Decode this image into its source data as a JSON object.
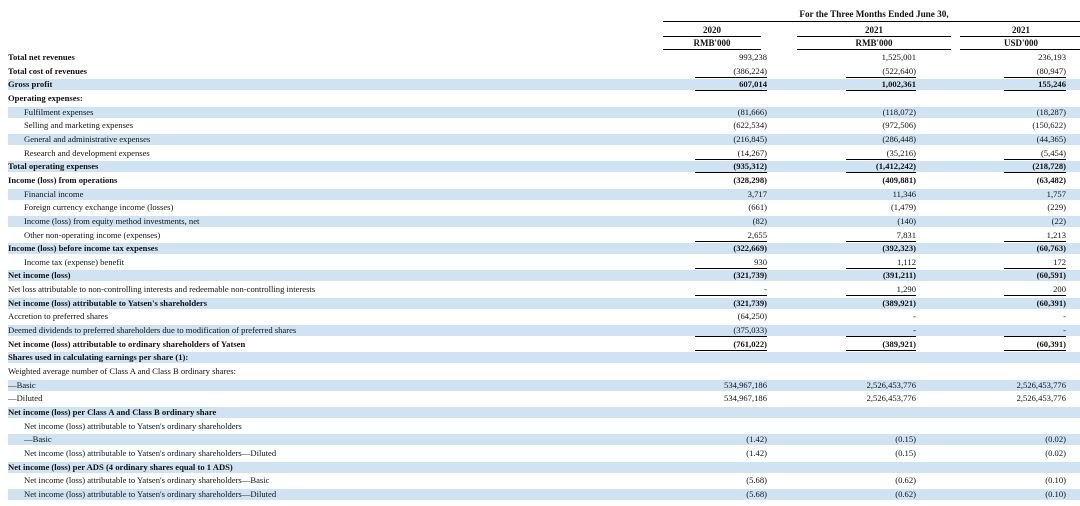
{
  "header": {
    "period_title": "For the Three Months Ended June 30,",
    "columns": [
      {
        "year": "2020",
        "unit": "RMB'000"
      },
      {
        "year": "2021",
        "unit": "RMB'000"
      },
      {
        "year": "2021",
        "unit": "USD'000"
      }
    ]
  },
  "rows": [
    {
      "label": "Total net revenues",
      "bold": true,
      "indent": 0,
      "shaded": false,
      "values": [
        "993,238",
        "1,525,001",
        "236,193"
      ],
      "rule": ""
    },
    {
      "label": "Total cost of revenues",
      "bold": true,
      "indent": 0,
      "shaded": false,
      "values": [
        "(386,224)",
        "(522,640)",
        "(80,947)"
      ],
      "rule": "single"
    },
    {
      "label": "Gross profit",
      "bold": true,
      "indent": 0,
      "shaded": true,
      "values": [
        "607,014",
        "1,002,361",
        "155,246"
      ],
      "rule": "single",
      "boldvals": true
    },
    {
      "label": "Operating expenses:",
      "bold": true,
      "indent": 0,
      "shaded": false,
      "values": [
        "",
        "",
        ""
      ],
      "rule": ""
    },
    {
      "label": "Fulfilment expenses",
      "bold": false,
      "indent": 1,
      "shaded": true,
      "values": [
        "(81,666)",
        "(118,072)",
        "(18,287)"
      ],
      "rule": ""
    },
    {
      "label": "Selling and marketing expenses",
      "bold": false,
      "indent": 1,
      "shaded": false,
      "values": [
        "(622,534)",
        "(972,506)",
        "(150,622)"
      ],
      "rule": ""
    },
    {
      "label": "General and administrative expenses",
      "bold": false,
      "indent": 1,
      "shaded": true,
      "values": [
        "(216,845)",
        "(286,448)",
        "(44,365)"
      ],
      "rule": ""
    },
    {
      "label": "Research and development expenses",
      "bold": false,
      "indent": 1,
      "shaded": false,
      "values": [
        "(14,267)",
        "(35,216)",
        "(5,454)"
      ],
      "rule": "single"
    },
    {
      "label": "Total operating expenses",
      "bold": true,
      "indent": 0,
      "shaded": true,
      "values": [
        "(935,312)",
        "(1,412,242)",
        "(218,728)"
      ],
      "rule": "single",
      "boldvals": true
    },
    {
      "label": "Income (loss) from operations",
      "bold": true,
      "indent": 0,
      "shaded": false,
      "values": [
        "(328,298)",
        "(409,881)",
        "(63,482)"
      ],
      "rule": "",
      "boldvals": true
    },
    {
      "label": "Financial income",
      "bold": false,
      "indent": 1,
      "shaded": true,
      "values": [
        "3,717",
        "11,346",
        "1,757"
      ],
      "rule": ""
    },
    {
      "label": "Foreign currency exchange income (losses)",
      "bold": false,
      "indent": 1,
      "shaded": false,
      "values": [
        "(661)",
        "(1,479)",
        "(229)"
      ],
      "rule": ""
    },
    {
      "label": "Income (loss) from equity method investments, net",
      "bold": false,
      "indent": 1,
      "shaded": true,
      "values": [
        "(82)",
        "(140)",
        "(22)"
      ],
      "rule": ""
    },
    {
      "label": "Other non-operating income (expenses)",
      "bold": false,
      "indent": 1,
      "shaded": false,
      "values": [
        "2,655",
        "7,831",
        "1,213"
      ],
      "rule": "single"
    },
    {
      "label": "Income (loss) before income tax expenses",
      "bold": true,
      "indent": 0,
      "shaded": true,
      "values": [
        "(322,669)",
        "(392,323)",
        "(60,763)"
      ],
      "rule": "",
      "boldvals": true
    },
    {
      "label": "Income tax (expense) benefit",
      "bold": false,
      "indent": 1,
      "shaded": false,
      "values": [
        "930",
        "1,112",
        "172"
      ],
      "rule": "single"
    },
    {
      "label": "Net income (loss)",
      "bold": true,
      "indent": 0,
      "shaded": true,
      "values": [
        "(321,739)",
        "(391,211)",
        "(60,591)"
      ],
      "rule": "",
      "boldvals": true
    },
    {
      "label": "Net loss attributable to non-controlling interests and redeemable non-controlling interests",
      "bold": false,
      "indent": 0,
      "shaded": false,
      "values": [
        "-",
        "1,290",
        "200"
      ],
      "rule": "single"
    },
    {
      "label": "Net income (loss) attributable to Yatsen's shareholders",
      "bold": true,
      "indent": 0,
      "shaded": true,
      "values": [
        "(321,739)",
        "(389,921)",
        "(60,391)"
      ],
      "rule": "",
      "boldvals": true
    },
    {
      "label": "Accretion to preferred shares",
      "bold": false,
      "indent": 0,
      "shaded": false,
      "values": [
        "(64,250)",
        "-",
        "-"
      ],
      "rule": ""
    },
    {
      "label": "Deemed dividends to preferred shareholders due to modification of preferred shares",
      "bold": false,
      "indent": 0,
      "shaded": true,
      "values": [
        "(375,033)",
        "-",
        "-"
      ],
      "rule": "single"
    },
    {
      "label": "Net income (loss) attributable to ordinary shareholders of Yatsen",
      "bold": true,
      "indent": 0,
      "shaded": false,
      "values": [
        "(761,022)",
        "(389,921)",
        "(60,391)"
      ],
      "rule": "double",
      "boldvals": true
    },
    {
      "label": "Shares used in calculating earnings per share (1):",
      "bold": true,
      "indent": 0,
      "shaded": true,
      "values": [
        "",
        "",
        ""
      ],
      "rule": ""
    },
    {
      "label": "Weighted average number of Class A and Class B ordinary shares:",
      "bold": false,
      "indent": 0,
      "shaded": false,
      "values": [
        "",
        "",
        ""
      ],
      "rule": ""
    },
    {
      "label": "—Basic",
      "bold": false,
      "indent": 0,
      "shaded": true,
      "values": [
        "534,967,186",
        "2,526,453,776",
        "2,526,453,776"
      ],
      "rule": ""
    },
    {
      "label": "—Diluted",
      "bold": false,
      "indent": 0,
      "shaded": false,
      "values": [
        "534,967,186",
        "2,526,453,776",
        "2,526,453,776"
      ],
      "rule": ""
    },
    {
      "label": "Net income (loss) per Class A and Class B ordinary share",
      "bold": true,
      "indent": 0,
      "shaded": true,
      "values": [
        "",
        "",
        ""
      ],
      "rule": ""
    },
    {
      "label": "Net income (loss) attributable to Yatsen's ordinary shareholders",
      "bold": false,
      "indent": 1,
      "shaded": false,
      "values": [
        "",
        "",
        ""
      ],
      "rule": ""
    },
    {
      "label": "—Basic",
      "bold": false,
      "indent": 1,
      "shaded": true,
      "values": [
        "(1.42)",
        "(0.15)",
        "(0.02)"
      ],
      "rule": ""
    },
    {
      "label": "Net income (loss) attributable to Yatsen's ordinary shareholders—Diluted",
      "bold": false,
      "indent": 1,
      "shaded": false,
      "values": [
        "(1.42)",
        "(0.15)",
        "(0.02)"
      ],
      "rule": ""
    },
    {
      "label": "Net income (loss) per ADS (4 ordinary shares equal to 1 ADS)",
      "bold": true,
      "indent": 0,
      "shaded": true,
      "values": [
        "",
        "",
        ""
      ],
      "rule": ""
    },
    {
      "label": "Net income (loss) attributable to Yatsen's ordinary shareholders—Basic",
      "bold": false,
      "indent": 1,
      "shaded": false,
      "values": [
        "(5.68)",
        "(0.62)",
        "(0.10)"
      ],
      "rule": ""
    },
    {
      "label": "Net income (loss) attributable to Yatsen's ordinary shareholders—Diluted",
      "bold": false,
      "indent": 1,
      "shaded": true,
      "values": [
        "(5.68)",
        "(0.62)",
        "(0.10)"
      ],
      "rule": ""
    }
  ],
  "colors": {
    "shade": "#cfe3f3",
    "text": "#111111",
    "rule": "#000000"
  }
}
